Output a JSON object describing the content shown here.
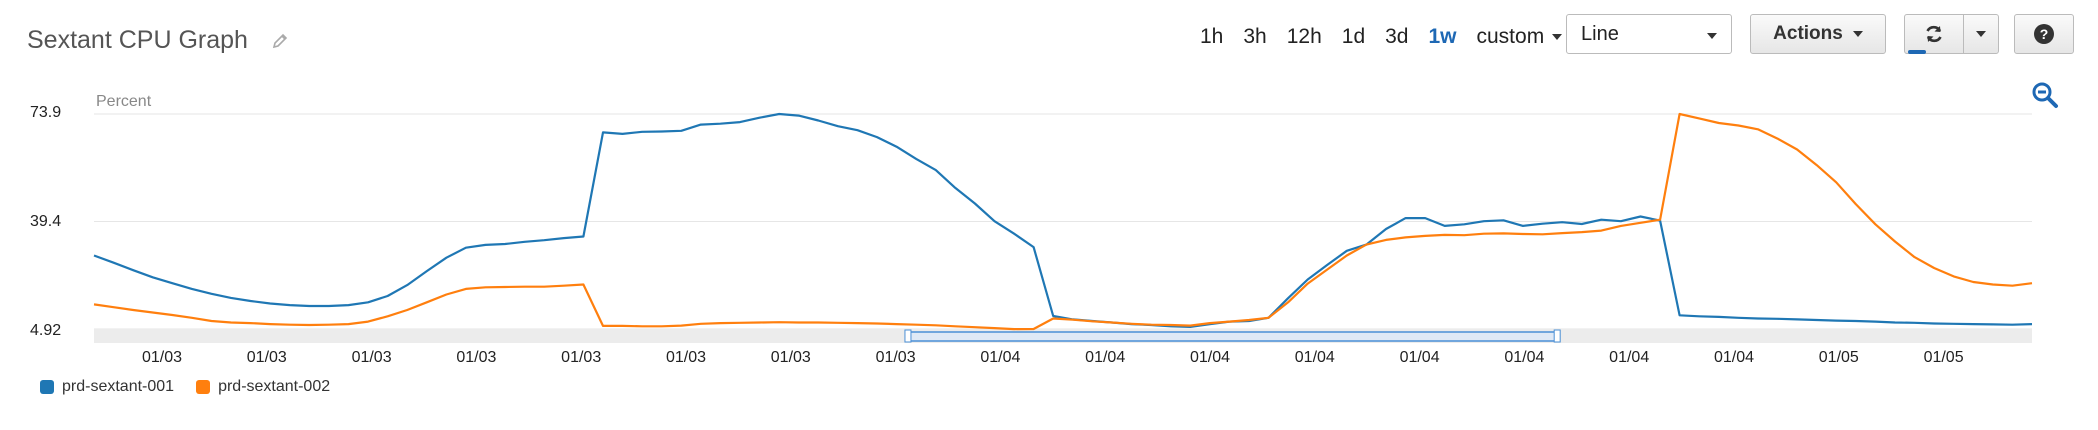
{
  "header": {
    "title": "Sextant CPU Graph",
    "edit_icon": "pencil-icon"
  },
  "toolbar": {
    "ranges": [
      "1h",
      "3h",
      "12h",
      "1d",
      "3d",
      "1w"
    ],
    "active_range": "1w",
    "custom_label": "custom",
    "chart_type_value": "Line",
    "actions_label": "Actions",
    "refresh_icon": "refresh-icon",
    "help_icon": "help-icon",
    "zoom_icon": "zoom-out-icon"
  },
  "chart_data": {
    "type": "line",
    "ylabel": "Percent",
    "yticks": [
      "73.9",
      "39.4",
      "4.92"
    ],
    "ylim": [
      4.92,
      73.9
    ],
    "x_tick_labels": [
      "01/03",
      "01/03",
      "01/03",
      "01/03",
      "01/03",
      "01/03",
      "01/03",
      "01/03",
      "01/04",
      "01/04",
      "01/04",
      "01/04",
      "01/04",
      "01/04",
      "01/04",
      "01/04",
      "01/05",
      "01/05"
    ],
    "grid": true,
    "legend_placement": "bottom-left",
    "series": [
      {
        "name": "prd-sextant-001",
        "color": "#1f77b4",
        "x": [
          0,
          1,
          2,
          3,
          4,
          5,
          6,
          7,
          8,
          9,
          10,
          11,
          12,
          13,
          14,
          15,
          16,
          17,
          18,
          19,
          20,
          21,
          22,
          23,
          24,
          25,
          26,
          27,
          28,
          29,
          30,
          31,
          32,
          33,
          34,
          35,
          36,
          37,
          38,
          39,
          40,
          41,
          42,
          43,
          44,
          45,
          46,
          47,
          48,
          49,
          50,
          51,
          52,
          53,
          54,
          55,
          56,
          57,
          58,
          59,
          60,
          61,
          62,
          63,
          64,
          65,
          66,
          67,
          68,
          69,
          70,
          71,
          72,
          73,
          74,
          75,
          76,
          77,
          78,
          79,
          80,
          81,
          82,
          83,
          84,
          85,
          86,
          87,
          88,
          89,
          90,
          91,
          92,
          93,
          94,
          95,
          96,
          97,
          98,
          99
        ],
        "values": [
          28.5,
          26.2,
          23.8,
          21.5,
          19.6,
          17.8,
          16.2,
          14.9,
          13.9,
          13.1,
          12.6,
          12.3,
          12.3,
          12.6,
          13.5,
          15.5,
          19.0,
          23.5,
          27.8,
          31.0,
          31.9,
          32.2,
          32.9,
          33.4,
          34.1,
          34.6,
          68.0,
          67.5,
          68.2,
          68.3,
          68.5,
          70.5,
          70.8,
          71.3,
          72.7,
          73.9,
          73.4,
          71.8,
          70.0,
          68.7,
          66.5,
          63.4,
          59.5,
          55.9,
          50.2,
          45.2,
          39.5,
          35.5,
          31.2,
          9.1,
          8.0,
          7.5,
          7.0,
          6.5,
          6.2,
          5.8,
          5.6,
          6.5,
          7.3,
          7.5,
          8.5,
          14.8,
          20.8,
          25.5,
          30.0,
          32.0,
          37.0,
          40.5,
          40.5,
          38.0,
          38.5,
          39.5,
          39.8,
          38.0,
          38.7,
          39.2,
          38.6,
          40.0,
          39.5,
          41.0,
          39.7,
          9.3,
          9.0,
          8.8,
          8.5,
          8.3,
          8.2,
          8.0,
          7.8,
          7.6,
          7.5,
          7.3,
          7.0,
          6.9,
          6.7,
          6.6,
          6.5,
          6.4,
          6.3,
          6.5
        ]
      },
      {
        "name": "prd-sextant-002",
        "color": "#ff7f0e",
        "x": [
          0,
          1,
          2,
          3,
          4,
          5,
          6,
          7,
          8,
          9,
          10,
          11,
          12,
          13,
          14,
          15,
          16,
          17,
          18,
          19,
          20,
          21,
          22,
          23,
          24,
          25,
          26,
          27,
          28,
          29,
          30,
          31,
          32,
          33,
          34,
          35,
          36,
          37,
          38,
          39,
          40,
          41,
          42,
          43,
          44,
          45,
          46,
          47,
          48,
          49,
          50,
          51,
          52,
          53,
          54,
          55,
          56,
          57,
          58,
          59,
          60,
          61,
          62,
          63,
          64,
          65,
          66,
          67,
          68,
          69,
          70,
          71,
          72,
          73,
          74,
          75,
          76,
          77,
          78,
          79,
          80,
          81,
          82,
          83,
          84,
          85,
          86,
          87,
          88,
          89,
          90,
          91,
          92,
          93,
          94,
          95,
          96,
          97,
          98,
          99
        ],
        "values": [
          12.8,
          11.9,
          11.0,
          10.2,
          9.4,
          8.5,
          7.5,
          7.0,
          6.8,
          6.5,
          6.3,
          6.2,
          6.3,
          6.5,
          7.3,
          9.0,
          11.0,
          13.5,
          16.0,
          17.8,
          18.3,
          18.4,
          18.5,
          18.5,
          18.8,
          19.2,
          5.9,
          5.9,
          5.8,
          5.8,
          6.0,
          6.6,
          6.8,
          6.9,
          7.0,
          7.1,
          7.0,
          7.0,
          6.9,
          6.8,
          6.7,
          6.5,
          6.3,
          6.1,
          5.8,
          5.5,
          5.2,
          4.9,
          4.92,
          8.3,
          7.9,
          7.4,
          7.0,
          6.6,
          6.3,
          6.2,
          6.0,
          6.8,
          7.3,
          7.8,
          8.5,
          13.5,
          19.5,
          24.0,
          28.5,
          32.0,
          33.5,
          34.3,
          34.8,
          35.1,
          35.0,
          35.5,
          35.6,
          35.4,
          35.3,
          35.7,
          36.0,
          36.5,
          38.0,
          39.0,
          40.0,
          73.9,
          72.5,
          71.0,
          70.2,
          69.0,
          66.0,
          62.5,
          57.5,
          52.0,
          45.0,
          38.5,
          33.0,
          28.0,
          24.5,
          21.8,
          20.0,
          19.2,
          18.8,
          19.6
        ]
      }
    ],
    "navigator": {
      "range": [
        0.42,
        0.755
      ]
    }
  }
}
